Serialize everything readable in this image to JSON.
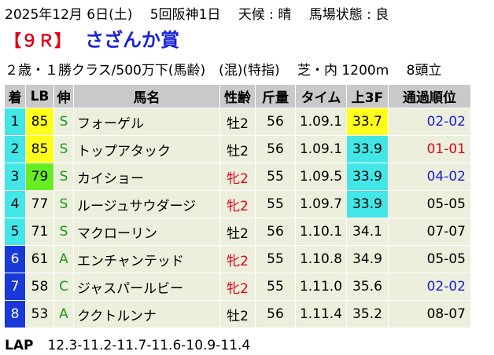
{
  "header": {
    "date_line": "2025年12月 6日(土)　 5回阪神1日　 天候 : 晴　 馬場状態 : 良"
  },
  "race": {
    "number": "【９Ｒ】",
    "name": "さざんか賞",
    "conditions": "２歳・１勝クラス/500万下(馬齢)　(混)(特指)　 芝・内 1200m　 8頭立"
  },
  "table": {
    "headers": [
      "着",
      "LB",
      "伸",
      "馬名",
      "性齢",
      "斤量",
      "タイム",
      "上3F",
      "通過順位"
    ],
    "rows": [
      {
        "no": "1",
        "lb": "85",
        "ls": "S",
        "name": "フォーゲル",
        "sex": "牡2",
        "wt": "56",
        "time": "1.09.1",
        "f3": "33.7",
        "pass": "02-02"
      },
      {
        "no": "2",
        "lb": "85",
        "ls": "S",
        "name": "トップアタック",
        "sex": "牡2",
        "wt": "56",
        "time": "1.09.1",
        "f3": "33.9",
        "pass": "01-01"
      },
      {
        "no": "3",
        "lb": "79",
        "ls": "S",
        "name": "カイショー",
        "sex": "牝2",
        "wt": "55",
        "time": "1.09.5",
        "f3": "33.9",
        "pass": "04-02"
      },
      {
        "no": "4",
        "lb": "77",
        "ls": "S",
        "name": "ルージュサウダージ",
        "sex": "牝2",
        "wt": "55",
        "time": "1.09.7",
        "f3": "33.9",
        "pass": "05-05"
      },
      {
        "no": "5",
        "lb": "71",
        "ls": "S",
        "name": "マクローリン",
        "sex": "牡2",
        "wt": "56",
        "time": "1.10.1",
        "f3": "34.1",
        "pass": "07-07"
      },
      {
        "no": "6",
        "lb": "61",
        "ls": "A",
        "name": "エンチャンテッド",
        "sex": "牝2",
        "wt": "55",
        "time": "1.10.8",
        "f3": "34.9",
        "pass": "05-05"
      },
      {
        "no": "7",
        "lb": "58",
        "ls": "C",
        "name": "ジャスパールビー",
        "sex": "牝2",
        "wt": "55",
        "time": "1.11.0",
        "f3": "35.6",
        "pass": "02-02"
      },
      {
        "no": "8",
        "lb": "53",
        "ls": "A",
        "name": "ククトルンナ",
        "sex": "牡2",
        "wt": "56",
        "time": "1.11.4",
        "f3": "35.2",
        "pass": "08-07"
      }
    ]
  },
  "lap": {
    "label": "LAP",
    "values": "12.3-11.2-11.7-11.6-10.9-11.4"
  },
  "colors": {
    "header_bg": "#c9c9c9",
    "cell_bg": "#ecefdc",
    "no_cyan": "#42e6e6",
    "no_blue": "#1838d8",
    "lb_yellow": "#ffff1e",
    "lb_green": "#66ee22",
    "f3_yellow": "#ffff1e",
    "f3_cyan": "#42e6e6",
    "red_text": "#e0001b",
    "blue_text": "#1a23d6",
    "green_text": "#1a9a1a"
  }
}
